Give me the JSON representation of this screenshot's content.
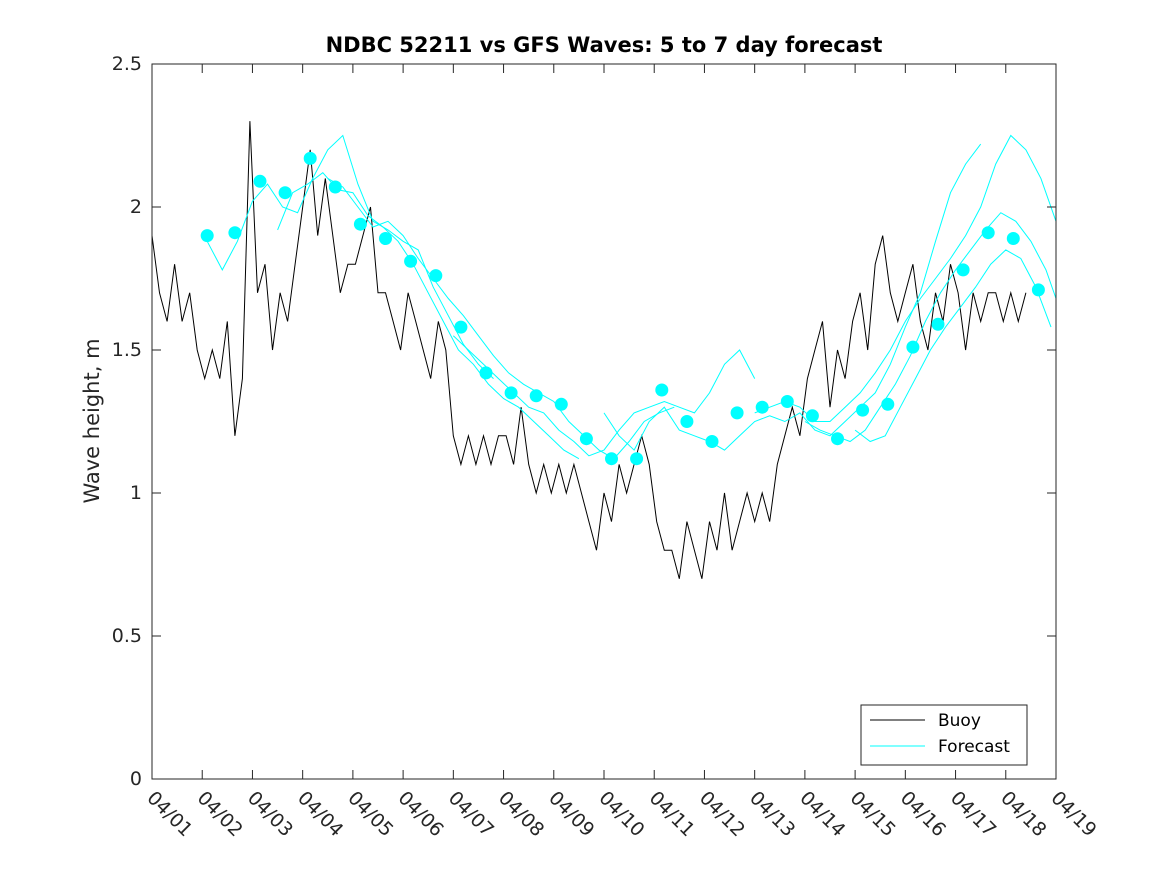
{
  "chart_data": {
    "type": "line",
    "title": "NDBC 52211 vs GFS Waves: 5 to 7 day forecast",
    "xlabel": "",
    "ylabel": "Wave height, m",
    "xlim": [
      0,
      18
    ],
    "ylim": [
      0,
      2.5
    ],
    "yticks": [
      0,
      0.5,
      1,
      1.5,
      2,
      2.5
    ],
    "yticklabels": [
      "0",
      "0.5",
      "1",
      "1.5",
      "2",
      "2.5"
    ],
    "xticks": [
      0,
      1,
      2,
      3,
      4,
      5,
      6,
      7,
      8,
      9,
      10,
      11,
      12,
      13,
      14,
      15,
      16,
      17,
      18
    ],
    "xticklabels": [
      "04/01",
      "04/02",
      "04/03",
      "04/04",
      "04/05",
      "04/06",
      "04/07",
      "04/08",
      "04/09",
      "04/10",
      "04/11",
      "04/12",
      "04/13",
      "04/14",
      "04/15",
      "04/16",
      "04/17",
      "04/18",
      "04/19"
    ],
    "legend": {
      "location": "bottom-right",
      "entries": [
        "Buoy",
        "Forecast"
      ]
    },
    "colors": {
      "buoy": "#000000",
      "forecast": "#00FFFF",
      "axes": "#262626"
    },
    "series": [
      {
        "name": "Buoy",
        "color": "#000000",
        "x": [
          0,
          0.15,
          0.3,
          0.45,
          0.6,
          0.75,
          0.9,
          1.05,
          1.2,
          1.35,
          1.5,
          1.65,
          1.8,
          1.95,
          2.1,
          2.25,
          2.4,
          2.55,
          2.7,
          2.85,
          3.0,
          3.15,
          3.3,
          3.45,
          3.6,
          3.75,
          3.9,
          4.05,
          4.2,
          4.35,
          4.5,
          4.65,
          4.8,
          4.95,
          5.1,
          5.25,
          5.4,
          5.55,
          5.7,
          5.85,
          6.0,
          6.15,
          6.3,
          6.45,
          6.6,
          6.75,
          6.9,
          7.05,
          7.2,
          7.35,
          7.5,
          7.65,
          7.8,
          7.95,
          8.1,
          8.25,
          8.4,
          8.55,
          8.7,
          8.85,
          9.0,
          9.15,
          9.3,
          9.45,
          9.6,
          9.75,
          9.9,
          10.05,
          10.2,
          10.35,
          10.5,
          10.65,
          10.8,
          10.95,
          11.1,
          11.25,
          11.4,
          11.55,
          11.7,
          11.85,
          12.0,
          12.15,
          12.3,
          12.45,
          12.6,
          12.75,
          12.9,
          13.05,
          13.2,
          13.35,
          13.5,
          13.65,
          13.8,
          13.95,
          14.1,
          14.25,
          14.4,
          14.55,
          14.7,
          14.85,
          15.0,
          15.15,
          15.3,
          15.45,
          15.6,
          15.75,
          15.9,
          16.05,
          16.2,
          16.35,
          16.5,
          16.65,
          16.8,
          16.95,
          17.1,
          17.25,
          17.4
        ],
        "y": [
          1.9,
          1.7,
          1.6,
          1.8,
          1.6,
          1.7,
          1.5,
          1.4,
          1.5,
          1.4,
          1.6,
          1.2,
          1.4,
          2.3,
          1.7,
          1.8,
          1.5,
          1.7,
          1.6,
          1.8,
          2.0,
          2.2,
          1.9,
          2.1,
          1.9,
          1.7,
          1.8,
          1.8,
          1.9,
          2.0,
          1.7,
          1.7,
          1.6,
          1.5,
          1.7,
          1.6,
          1.5,
          1.4,
          1.6,
          1.5,
          1.2,
          1.1,
          1.2,
          1.1,
          1.2,
          1.1,
          1.2,
          1.2,
          1.1,
          1.3,
          1.1,
          1.0,
          1.1,
          1.0,
          1.1,
          1.0,
          1.1,
          1.0,
          0.9,
          0.8,
          1.0,
          0.9,
          1.1,
          1.0,
          1.1,
          1.2,
          1.1,
          0.9,
          0.8,
          0.8,
          0.7,
          0.9,
          0.8,
          0.7,
          0.9,
          0.8,
          1.0,
          0.8,
          0.9,
          1.0,
          0.9,
          1.0,
          0.9,
          1.1,
          1.2,
          1.3,
          1.2,
          1.4,
          1.5,
          1.6,
          1.3,
          1.5,
          1.4,
          1.6,
          1.7,
          1.5,
          1.8,
          1.9,
          1.7,
          1.6,
          1.7,
          1.8,
          1.6,
          1.5,
          1.7,
          1.6,
          1.8,
          1.7,
          1.5,
          1.7,
          1.6,
          1.7,
          1.7,
          1.6,
          1.7,
          1.6,
          1.7
        ]
      },
      {
        "name": "Forecast run 1",
        "color": "#00FFFF",
        "x": [
          1.1,
          1.4,
          1.7,
          2.0,
          2.3,
          2.6,
          2.9,
          3.2,
          3.5,
          3.8,
          4.1,
          4.4,
          4.7,
          5.0,
          5.3,
          5.6,
          5.9,
          6.2,
          6.5,
          6.8
        ],
        "y": [
          1.88,
          1.78,
          1.88,
          2.02,
          2.08,
          2.0,
          1.98,
          2.1,
          2.2,
          2.25,
          2.08,
          1.95,
          1.92,
          1.88,
          1.85,
          1.72,
          1.62,
          1.52,
          1.45,
          1.4
        ]
      },
      {
        "name": "Forecast run 2",
        "color": "#00FFFF",
        "x": [
          2.5,
          2.8,
          3.1,
          3.4,
          3.7,
          4.0,
          4.3,
          4.6,
          4.9,
          5.2,
          5.5,
          5.8,
          6.1,
          6.4,
          6.7,
          7.0,
          7.3,
          7.6,
          7.9,
          8.2,
          8.5
        ],
        "y": [
          1.92,
          2.05,
          2.08,
          2.12,
          2.06,
          2.05,
          1.97,
          1.93,
          1.88,
          1.8,
          1.7,
          1.6,
          1.5,
          1.45,
          1.38,
          1.33,
          1.3,
          1.25,
          1.2,
          1.15,
          1.12
        ]
      },
      {
        "name": "Forecast run 3",
        "color": "#00FFFF",
        "x": [
          3.5,
          3.8,
          4.1,
          4.4,
          4.7,
          5.0,
          5.3,
          5.6,
          5.9,
          6.2,
          6.5,
          6.8,
          7.1,
          7.4,
          7.7,
          8.0,
          8.3,
          8.6,
          8.9,
          9.2,
          9.5,
          9.8,
          10.1,
          10.4
        ],
        "y": [
          2.1,
          2.07,
          2.0,
          1.93,
          1.95,
          1.9,
          1.82,
          1.75,
          1.68,
          1.62,
          1.55,
          1.48,
          1.42,
          1.38,
          1.35,
          1.32,
          1.25,
          1.2,
          1.15,
          1.12,
          1.18,
          1.25,
          1.28,
          1.3
        ]
      },
      {
        "name": "Forecast run 4",
        "color": "#00FFFF",
        "x": [
          6.0,
          6.3,
          6.6,
          6.9,
          7.2,
          7.5,
          7.8,
          8.1,
          8.4,
          8.7,
          9.0,
          9.3,
          9.6,
          9.9,
          10.2,
          10.5,
          10.8,
          11.1,
          11.4,
          11.7,
          12.0
        ],
        "y": [
          1.55,
          1.5,
          1.45,
          1.4,
          1.35,
          1.3,
          1.28,
          1.22,
          1.18,
          1.13,
          1.15,
          1.22,
          1.28,
          1.3,
          1.32,
          1.3,
          1.28,
          1.35,
          1.45,
          1.5,
          1.4
        ]
      },
      {
        "name": "Forecast run 5",
        "color": "#00FFFF",
        "x": [
          9.0,
          9.3,
          9.6,
          9.9,
          10.2,
          10.5,
          10.8,
          11.1,
          11.4,
          11.7,
          12.0,
          12.3,
          12.6,
          12.9,
          13.2,
          13.5,
          13.8,
          14.1,
          14.4,
          14.7,
          15.0,
          15.3,
          15.6,
          15.9,
          16.2,
          16.5
        ],
        "y": [
          1.28,
          1.2,
          1.15,
          1.25,
          1.3,
          1.22,
          1.2,
          1.18,
          1.15,
          1.2,
          1.25,
          1.27,
          1.25,
          1.28,
          1.22,
          1.2,
          1.25,
          1.3,
          1.35,
          1.45,
          1.58,
          1.7,
          1.88,
          2.05,
          2.15,
          2.22
        ]
      },
      {
        "name": "Forecast run 6",
        "color": "#00FFFF",
        "x": [
          12.0,
          12.3,
          12.6,
          12.9,
          13.2,
          13.5,
          13.8,
          14.1,
          14.4,
          14.7,
          15.0,
          15.3,
          15.6,
          15.9,
          16.2,
          16.5,
          16.8,
          17.1,
          17.4,
          17.7,
          18.0
        ],
        "y": [
          1.28,
          1.3,
          1.32,
          1.3,
          1.25,
          1.25,
          1.3,
          1.35,
          1.42,
          1.5,
          1.6,
          1.68,
          1.75,
          1.82,
          1.9,
          2.0,
          2.15,
          2.25,
          2.2,
          2.1,
          1.95
        ]
      },
      {
        "name": "Forecast run 7",
        "color": "#00FFFF",
        "x": [
          13.0,
          13.3,
          13.6,
          13.9,
          14.2,
          14.5,
          14.8,
          15.1,
          15.4,
          15.7,
          16.0,
          16.3,
          16.6,
          16.9,
          17.2,
          17.5,
          17.8,
          18.0
        ],
        "y": [
          1.25,
          1.22,
          1.2,
          1.18,
          1.22,
          1.3,
          1.38,
          1.48,
          1.6,
          1.7,
          1.78,
          1.85,
          1.92,
          1.98,
          1.95,
          1.88,
          1.78,
          1.68
        ]
      },
      {
        "name": "Forecast run 8",
        "color": "#00FFFF",
        "x": [
          14.0,
          14.3,
          14.6,
          14.9,
          15.2,
          15.5,
          15.8,
          16.1,
          16.4,
          16.7,
          17.0,
          17.3,
          17.6,
          17.9
        ],
        "y": [
          1.22,
          1.18,
          1.2,
          1.3,
          1.4,
          1.5,
          1.58,
          1.65,
          1.72,
          1.8,
          1.85,
          1.82,
          1.72,
          1.58
        ]
      },
      {
        "name": "Forecast markers",
        "color": "#00FFFF",
        "marker": "circle",
        "x": [
          1.1,
          1.65,
          2.15,
          2.65,
          3.15,
          3.65,
          4.15,
          4.65,
          5.15,
          5.65,
          6.15,
          6.65,
          7.15,
          7.65,
          8.15,
          8.65,
          9.15,
          9.65,
          10.15,
          10.65,
          11.15,
          11.65,
          12.15,
          12.65,
          13.15,
          13.65,
          14.15,
          14.65,
          15.15,
          15.65,
          16.15,
          16.65,
          17.15,
          17.65
        ],
        "y": [
          1.9,
          1.91,
          2.09,
          2.05,
          2.17,
          2.07,
          1.94,
          1.89,
          1.81,
          1.76,
          1.58,
          1.42,
          1.35,
          1.34,
          1.31,
          1.19,
          1.12,
          1.12,
          1.36,
          1.25,
          1.18,
          1.28,
          1.3,
          1.32,
          1.27,
          1.19,
          1.29,
          1.31,
          1.51,
          1.59,
          1.78,
          1.91,
          1.89,
          1.71
        ]
      }
    ]
  }
}
